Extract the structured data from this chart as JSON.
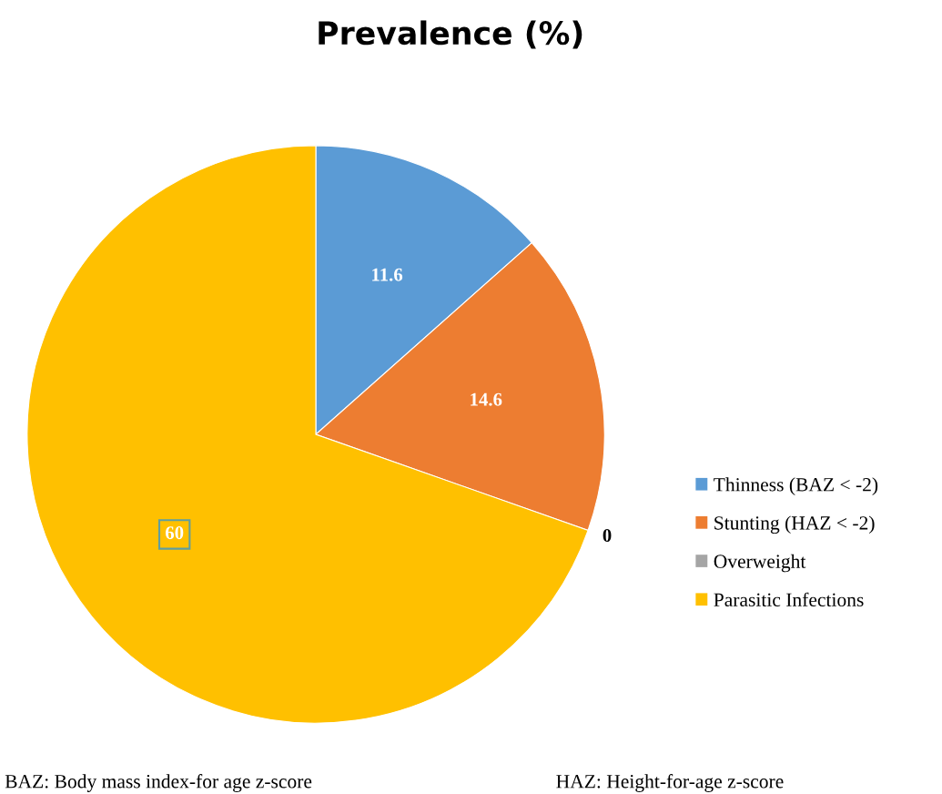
{
  "chart_data": {
    "type": "pie",
    "title": "Prevalence (%)",
    "categories": [
      "Thinness (BAZ < -2)",
      "Stunting (HAZ < -2)",
      "Overweight",
      "Parasitic Infections"
    ],
    "values": [
      11.6,
      14.6,
      0,
      60
    ],
    "colors": [
      "#5b9bd5",
      "#ed7d31",
      "#a5a5a5",
      "#ffc000"
    ],
    "value_labels": [
      "11.6",
      "14.6",
      "0",
      "60"
    ],
    "legend": "right",
    "annotations": [
      "BAZ: Body mass index-for age z-score",
      "HAZ: Height-for-age z-score"
    ]
  }
}
